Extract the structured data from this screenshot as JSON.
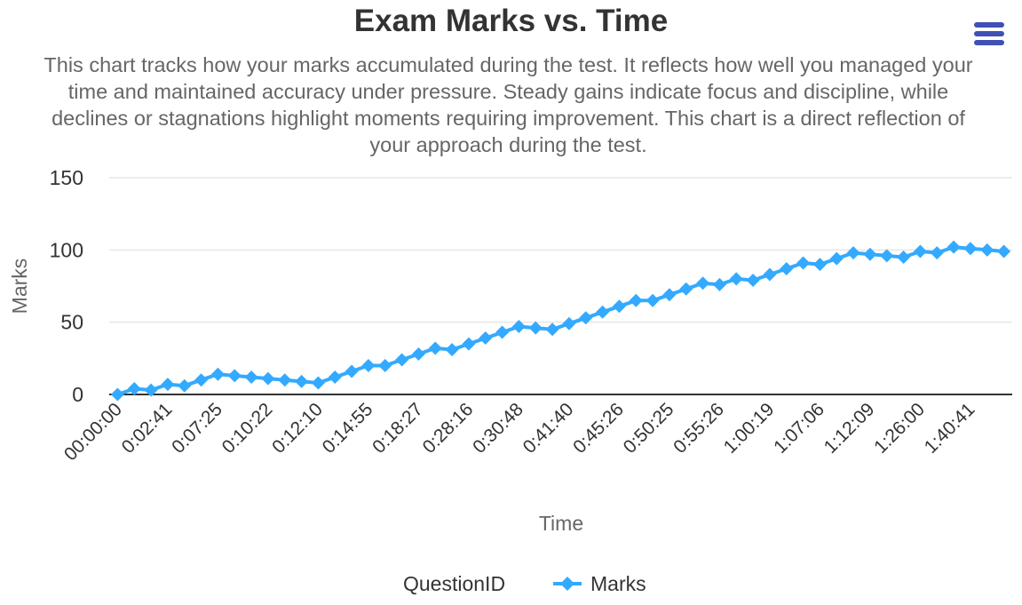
{
  "header": {
    "title": "Exam Marks vs. Time",
    "subtitle": "This chart tracks how your marks accumulated during the test. It reflects how well you managed your time and maintained accuracy under pressure. Steady gains indicate focus and discipline, while declines or stagnations highlight moments requiring improvement. This chart is a direct reflection of your approach during the test.",
    "menu_icon": "hamburger-menu-icon"
  },
  "legend": {
    "title": "QuestionID",
    "items": [
      {
        "label": "Marks",
        "color": "#33aaff",
        "marker": "diamond"
      }
    ]
  },
  "colors": {
    "series": "#33aaff",
    "grid": "#e6e6e6",
    "axis_line": "#333333",
    "menu": "#3f51b5",
    "title": "#333333",
    "subtitle": "#666666",
    "axis_title": "#666666",
    "tick_label": "#333333"
  },
  "chart_data": {
    "type": "line",
    "title": "Exam Marks vs. Time",
    "subtitle": "This chart tracks how your marks accumulated during the test. It reflects how well you managed your time and maintained accuracy under pressure. Steady gains indicate focus and discipline, while declines or stagnations highlight moments requiring improvement. This chart is a direct reflection of your approach during the test.",
    "xlabel": "Time",
    "ylabel": "Marks",
    "ylim": [
      0,
      150
    ],
    "yticks": [
      0,
      50,
      100,
      150
    ],
    "grid": true,
    "legend_position": "bottom",
    "legend_title": "QuestionID",
    "visible_x_tick_labels": [
      "00:00:00",
      "0:02:41",
      "0:07:25",
      "0:10:22",
      "0:12:10",
      "0:14:55",
      "0:18:27",
      "0:28:16",
      "0:30:48",
      "0:41:40",
      "0:45:26",
      "0:50:25",
      "0:55:26",
      "1:00:19",
      "1:07:06",
      "1:12:09",
      "1:26:00",
      "1:40:41"
    ],
    "tick_label_interval": 3,
    "num_points": 54,
    "series": [
      {
        "name": "Marks",
        "marker": "diamond",
        "values": [
          0,
          4,
          3,
          7,
          6,
          10,
          14,
          13,
          12,
          11,
          10,
          9,
          8,
          12,
          16,
          20,
          20,
          24,
          28,
          32,
          31,
          35,
          39,
          43,
          47,
          46,
          45,
          49,
          53,
          57,
          61,
          65,
          65,
          69,
          73,
          77,
          76,
          80,
          79,
          83,
          87,
          91,
          90,
          94,
          98,
          97,
          96,
          95,
          99,
          98,
          102,
          101,
          100,
          99
        ]
      }
    ]
  }
}
